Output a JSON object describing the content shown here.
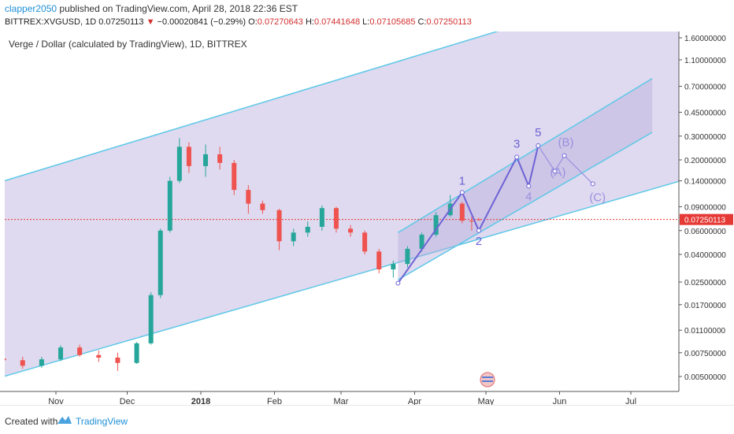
{
  "header": {
    "publisher": "clapper2050",
    "published_text": "published on TradingView.com, April 28, 2018 22:36 EST",
    "symbol": "BITTREX:XVGUSD, 1D",
    "last": "0.07250113",
    "change_arrow": "▼",
    "change": "−0.00020841 (−0.29%)",
    "o_label": "O:",
    "o": "0.07270643",
    "h_label": "H:",
    "h": "0.07441648",
    "l_label": "L:",
    "l": "0.07105685",
    "c_label": "C:",
    "c": "0.07250113"
  },
  "footer": {
    "created_with": "Created with",
    "brand": "TradingView",
    "logo_icon": "tradingview-logo-icon"
  },
  "chart_data": {
    "type": "candlestick",
    "title": "Verge / Dollar (calculated by TradingView), 1D, BITTREX",
    "y_scale": "log",
    "y_ticks": [
      "1.60000000",
      "1.10000000",
      "0.70000000",
      "0.45000000",
      "0.30000000",
      "0.20000000",
      "0.14000000",
      "0.09000000",
      "0.06000000",
      "0.04000000",
      "0.02500000",
      "0.01700000",
      "0.01100000",
      "0.00750000",
      "0.00500000"
    ],
    "x_ticks": [
      "Nov",
      "Dec",
      "2018",
      "Feb",
      "Mar",
      "Apr",
      "May",
      "Jun",
      "Jul"
    ],
    "last_price_label": "0.07250113",
    "colors": {
      "up": "#26a69a",
      "down": "#ef5350",
      "channel": "#5ec8e8",
      "channel_fill": "#b9aedc",
      "wave": "#6e63d6",
      "wave_light": "#9a90e0",
      "last_price": "#e53935"
    },
    "candles": [
      {
        "date": "2017-10-10",
        "o": 0.0068,
        "h": 0.0072,
        "l": 0.0061,
        "c": 0.0066
      },
      {
        "date": "2017-10-18",
        "o": 0.0066,
        "h": 0.007,
        "l": 0.0057,
        "c": 0.006
      },
      {
        "date": "2017-10-26",
        "o": 0.006,
        "h": 0.007,
        "l": 0.0058,
        "c": 0.0067
      },
      {
        "date": "2017-11-03",
        "o": 0.0067,
        "h": 0.0085,
        "l": 0.0065,
        "c": 0.0082
      },
      {
        "date": "2017-11-11",
        "o": 0.0082,
        "h": 0.0086,
        "l": 0.007,
        "c": 0.0072
      },
      {
        "date": "2017-11-19",
        "o": 0.0072,
        "h": 0.0078,
        "l": 0.0064,
        "c": 0.0069
      },
      {
        "date": "2017-11-27",
        "o": 0.0069,
        "h": 0.0075,
        "l": 0.0055,
        "c": 0.0063
      },
      {
        "date": "2017-12-05",
        "o": 0.0063,
        "h": 0.009,
        "l": 0.0062,
        "c": 0.0088
      },
      {
        "date": "2017-12-11",
        "o": 0.0088,
        "h": 0.021,
        "l": 0.0086,
        "c": 0.02
      },
      {
        "date": "2017-12-15",
        "o": 0.02,
        "h": 0.062,
        "l": 0.019,
        "c": 0.06
      },
      {
        "date": "2017-12-19",
        "o": 0.06,
        "h": 0.15,
        "l": 0.058,
        "c": 0.14
      },
      {
        "date": "2017-12-23",
        "o": 0.14,
        "h": 0.29,
        "l": 0.135,
        "c": 0.25
      },
      {
        "date": "2017-12-27",
        "o": 0.25,
        "h": 0.27,
        "l": 0.16,
        "c": 0.18
      },
      {
        "date": "2018-01-03",
        "o": 0.18,
        "h": 0.26,
        "l": 0.15,
        "c": 0.22
      },
      {
        "date": "2018-01-09",
        "o": 0.22,
        "h": 0.25,
        "l": 0.17,
        "c": 0.19
      },
      {
        "date": "2018-01-15",
        "o": 0.19,
        "h": 0.2,
        "l": 0.11,
        "c": 0.12
      },
      {
        "date": "2018-01-21",
        "o": 0.12,
        "h": 0.13,
        "l": 0.08,
        "c": 0.095
      },
      {
        "date": "2018-01-27",
        "o": 0.095,
        "h": 0.1,
        "l": 0.08,
        "c": 0.085
      },
      {
        "date": "2018-02-03",
        "o": 0.085,
        "h": 0.087,
        "l": 0.043,
        "c": 0.05
      },
      {
        "date": "2018-02-09",
        "o": 0.05,
        "h": 0.062,
        "l": 0.046,
        "c": 0.058
      },
      {
        "date": "2018-02-15",
        "o": 0.058,
        "h": 0.07,
        "l": 0.054,
        "c": 0.064
      },
      {
        "date": "2018-02-21",
        "o": 0.064,
        "h": 0.092,
        "l": 0.06,
        "c": 0.088
      },
      {
        "date": "2018-02-27",
        "o": 0.088,
        "h": 0.09,
        "l": 0.058,
        "c": 0.062
      },
      {
        "date": "2018-03-05",
        "o": 0.062,
        "h": 0.066,
        "l": 0.054,
        "c": 0.058
      },
      {
        "date": "2018-03-11",
        "o": 0.058,
        "h": 0.06,
        "l": 0.04,
        "c": 0.042
      },
      {
        "date": "2018-03-17",
        "o": 0.042,
        "h": 0.044,
        "l": 0.029,
        "c": 0.031
      },
      {
        "date": "2018-03-23",
        "o": 0.031,
        "h": 0.036,
        "l": 0.027,
        "c": 0.034
      },
      {
        "date": "2018-03-29",
        "o": 0.034,
        "h": 0.046,
        "l": 0.032,
        "c": 0.044
      },
      {
        "date": "2018-04-04",
        "o": 0.044,
        "h": 0.058,
        "l": 0.042,
        "c": 0.056
      },
      {
        "date": "2018-04-10",
        "o": 0.056,
        "h": 0.082,
        "l": 0.054,
        "c": 0.078
      },
      {
        "date": "2018-04-16",
        "o": 0.078,
        "h": 0.11,
        "l": 0.076,
        "c": 0.095
      },
      {
        "date": "2018-04-21",
        "o": 0.095,
        "h": 0.098,
        "l": 0.068,
        "c": 0.071
      },
      {
        "date": "2018-04-25",
        "o": 0.071,
        "h": 0.076,
        "l": 0.06,
        "c": 0.07
      },
      {
        "date": "2018-04-28",
        "o": 0.0727,
        "h": 0.0744,
        "l": 0.0711,
        "c": 0.0725
      }
    ],
    "channels": [
      {
        "name": "outer",
        "upper": [
          [
            "2017-10-01",
            0.125
          ],
          [
            "2018-05-15",
            2.0
          ]
        ],
        "lower": [
          [
            "2017-10-10",
            0.005
          ],
          [
            "2018-07-22",
            0.14
          ]
        ]
      },
      {
        "name": "inner",
        "upper": [
          [
            "2018-03-25",
            0.058
          ],
          [
            "2018-07-10",
            0.8
          ]
        ],
        "lower": [
          [
            "2018-03-25",
            0.026
          ],
          [
            "2018-07-10",
            0.32
          ]
        ]
      }
    ],
    "wave_points": [
      {
        "label": "",
        "date": "2018-03-25",
        "y": 0.0245
      },
      {
        "label": "1",
        "date": "2018-04-21",
        "y": 0.115
      },
      {
        "label": "2",
        "date": "2018-04-28",
        "y": 0.06
      },
      {
        "label": "3",
        "date": "2018-05-14",
        "y": 0.21
      },
      {
        "label": "4",
        "date": "2018-05-19",
        "y": 0.128
      },
      {
        "label": "5",
        "date": "2018-05-23",
        "y": 0.255
      },
      {
        "label": "(A)",
        "date": "2018-05-30",
        "y": 0.165
      },
      {
        "label": "(B)",
        "date": "2018-06-03",
        "y": 0.215
      },
      {
        "label": "(C)",
        "date": "2018-06-15",
        "y": 0.133
      }
    ]
  }
}
